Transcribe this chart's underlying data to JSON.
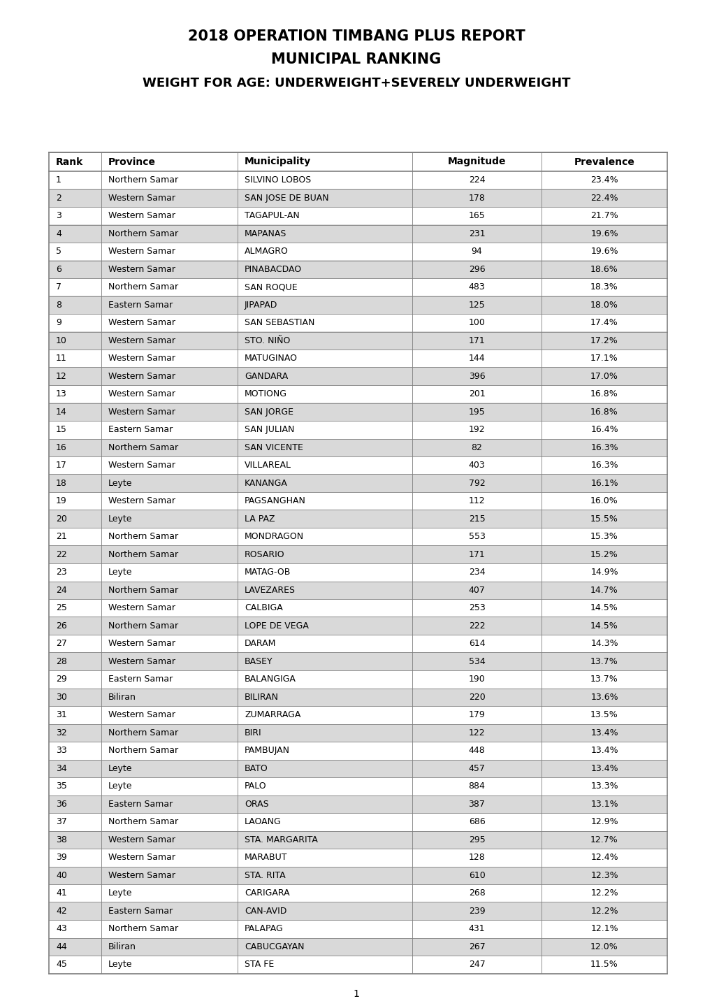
{
  "title_line1": "2018 OPERATION TIMBANG PLUS REPORT",
  "title_line2": "MUNICIPAL RANKING",
  "title_line3": "WEIGHT FOR AGE: UNDERWEIGHT+SEVERELY UNDERWEIGHT",
  "columns": [
    "Rank",
    "Province",
    "Municipality",
    "Magnitude",
    "Prevalence"
  ],
  "rows": [
    [
      1,
      "Northern Samar",
      "SILVINO LOBOS",
      224,
      "23.4%"
    ],
    [
      2,
      "Western Samar",
      "SAN JOSE DE BUAN",
      178,
      "22.4%"
    ],
    [
      3,
      "Western Samar",
      "TAGAPUL-AN",
      165,
      "21.7%"
    ],
    [
      4,
      "Northern Samar",
      "MAPANAS",
      231,
      "19.6%"
    ],
    [
      5,
      "Western Samar",
      "ALMAGRO",
      94,
      "19.6%"
    ],
    [
      6,
      "Western Samar",
      "PINABACDAO",
      296,
      "18.6%"
    ],
    [
      7,
      "Northern Samar",
      "SAN ROQUE",
      483,
      "18.3%"
    ],
    [
      8,
      "Eastern Samar",
      "JIPAPAD",
      125,
      "18.0%"
    ],
    [
      9,
      "Western Samar",
      "SAN SEBASTIAN",
      100,
      "17.4%"
    ],
    [
      10,
      "Western Samar",
      "STO. NIÑO",
      171,
      "17.2%"
    ],
    [
      11,
      "Western Samar",
      "MATUGINAO",
      144,
      "17.1%"
    ],
    [
      12,
      "Western Samar",
      "GANDARA",
      396,
      "17.0%"
    ],
    [
      13,
      "Western Samar",
      "MOTIONG",
      201,
      "16.8%"
    ],
    [
      14,
      "Western Samar",
      "SAN JORGE",
      195,
      "16.8%"
    ],
    [
      15,
      "Eastern Samar",
      "SAN JULIAN",
      192,
      "16.4%"
    ],
    [
      16,
      "Northern Samar",
      "SAN VICENTE",
      82,
      "16.3%"
    ],
    [
      17,
      "Western Samar",
      "VILLAREAL",
      403,
      "16.3%"
    ],
    [
      18,
      "Leyte",
      "KANANGA",
      792,
      "16.1%"
    ],
    [
      19,
      "Western Samar",
      "PAGSANGHAN",
      112,
      "16.0%"
    ],
    [
      20,
      "Leyte",
      "LA PAZ",
      215,
      "15.5%"
    ],
    [
      21,
      "Northern Samar",
      "MONDRAGON",
      553,
      "15.3%"
    ],
    [
      22,
      "Northern Samar",
      "ROSARIO",
      171,
      "15.2%"
    ],
    [
      23,
      "Leyte",
      "MATAG-OB",
      234,
      "14.9%"
    ],
    [
      24,
      "Northern Samar",
      "LAVEZARES",
      407,
      "14.7%"
    ],
    [
      25,
      "Western Samar",
      "CALBIGA",
      253,
      "14.5%"
    ],
    [
      26,
      "Northern Samar",
      "LOPE DE VEGA",
      222,
      "14.5%"
    ],
    [
      27,
      "Western Samar",
      "DARAM",
      614,
      "14.3%"
    ],
    [
      28,
      "Western Samar",
      "BASEY",
      534,
      "13.7%"
    ],
    [
      29,
      "Eastern Samar",
      "BALANGIGA",
      190,
      "13.7%"
    ],
    [
      30,
      "Biliran",
      "BILIRAN",
      220,
      "13.6%"
    ],
    [
      31,
      "Western Samar",
      "ZUMARRAGA",
      179,
      "13.5%"
    ],
    [
      32,
      "Northern Samar",
      "BIRI",
      122,
      "13.4%"
    ],
    [
      33,
      "Northern Samar",
      "PAMBUJAN",
      448,
      "13.4%"
    ],
    [
      34,
      "Leyte",
      "BATO",
      457,
      "13.4%"
    ],
    [
      35,
      "Leyte",
      "PALO",
      884,
      "13.3%"
    ],
    [
      36,
      "Eastern Samar",
      "ORAS",
      387,
      "13.1%"
    ],
    [
      37,
      "Northern Samar",
      "LAOANG",
      686,
      "12.9%"
    ],
    [
      38,
      "Western Samar",
      "STA. MARGARITA",
      295,
      "12.7%"
    ],
    [
      39,
      "Western Samar",
      "MARABUT",
      128,
      "12.4%"
    ],
    [
      40,
      "Western Samar",
      "STA. RITA",
      610,
      "12.3%"
    ],
    [
      41,
      "Leyte",
      "CARIGARA",
      268,
      "12.2%"
    ],
    [
      42,
      "Eastern Samar",
      "CAN-AVID",
      239,
      "12.2%"
    ],
    [
      43,
      "Northern Samar",
      "PALAPAG",
      431,
      "12.1%"
    ],
    [
      44,
      "Biliran",
      "CABUCGAYAN",
      267,
      "12.0%"
    ],
    [
      45,
      "Leyte",
      "STA FE",
      247,
      "11.5%"
    ]
  ],
  "col_aligns": [
    "left",
    "left",
    "left",
    "center",
    "center"
  ],
  "header_bg": "#ffffff",
  "row_bg_odd": "#ffffff",
  "row_bg_even": "#d9d9d9",
  "border_color": "#7f7f7f",
  "text_color": "#000000",
  "header_fontsize": 10,
  "data_fontsize": 9,
  "title_fontsize1": 15,
  "title_fontsize2": 15,
  "title_fontsize3": 13,
  "page_number": "1",
  "fig_width": 10.2,
  "fig_height": 14.42,
  "dpi": 100
}
